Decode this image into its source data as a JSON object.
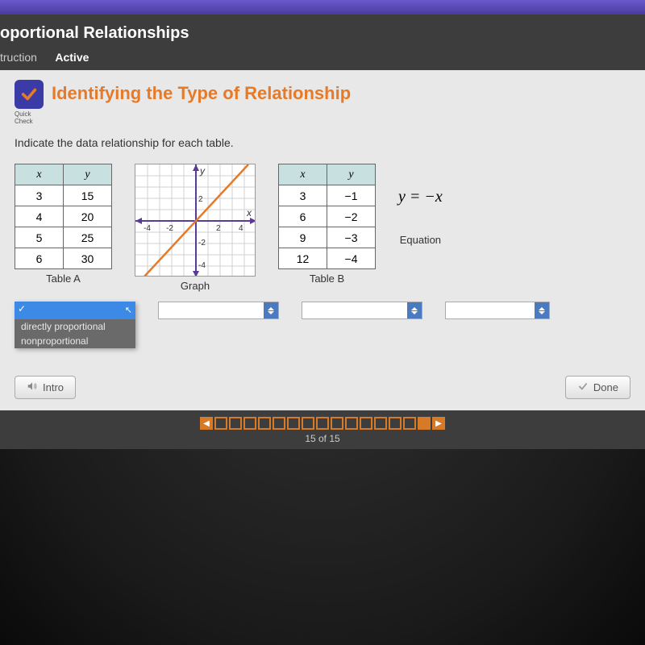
{
  "header": {
    "title": "oportional Relationships",
    "tabs": [
      "truction",
      "Active"
    ],
    "active_tab": 1
  },
  "panel": {
    "quick_check_label": "Quick\nCheck",
    "title": "Identifying the Type of Relationship",
    "instruction": "Indicate the data relationship for each table."
  },
  "table_a": {
    "label": "Table A",
    "columns": [
      "x",
      "y"
    ],
    "rows": [
      [
        "3",
        "15"
      ],
      [
        "4",
        "20"
      ],
      [
        "5",
        "25"
      ],
      [
        "6",
        "30"
      ]
    ],
    "header_bg": "#c8e0e0",
    "border": "#666666"
  },
  "graph": {
    "label": "Graph",
    "xlim": [
      -5,
      5
    ],
    "ylim": [
      -5,
      5
    ],
    "x_ticks": [
      "-4",
      "-2",
      "2",
      "4"
    ],
    "y_ticks": [
      "-4",
      "-2",
      "2",
      "4"
    ],
    "axis_labels": {
      "x": "x",
      "y": "y"
    },
    "grid_color": "#d0d0d0",
    "axis_color": "#5a3a96",
    "line": {
      "slope": 1.25,
      "intercept": 0,
      "color": "#e67a28",
      "width": 2
    },
    "background": "#ffffff"
  },
  "table_b": {
    "label": "Table B",
    "columns": [
      "x",
      "y"
    ],
    "rows": [
      [
        "3",
        "−1"
      ],
      [
        "6",
        "−2"
      ],
      [
        "9",
        "−3"
      ],
      [
        "12",
        "−4"
      ]
    ],
    "header_bg": "#c8e0e0"
  },
  "equation": {
    "label": "Equation",
    "text": "y = −x"
  },
  "dropdown": {
    "options": [
      "directly proportional",
      "nonproportional"
    ]
  },
  "buttons": {
    "intro": "Intro",
    "done": "Done"
  },
  "pager": {
    "count": 15,
    "current": 15,
    "text": "15 of 15"
  },
  "colors": {
    "accent": "#e67a28",
    "header_bg": "#3d3d3d",
    "panel_bg": "#e8e8e8",
    "qc_bg": "#3b3ba8",
    "select_accent": "#4a7abf"
  }
}
